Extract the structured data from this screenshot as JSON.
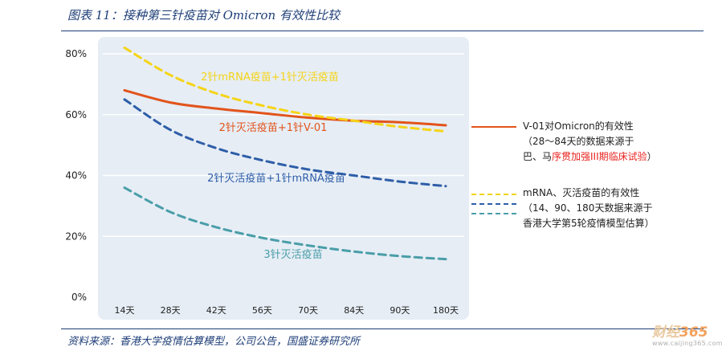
{
  "header": {
    "title": "图表 11：接种第三针疫苗对 Omicron 有效性比较"
  },
  "footer": {
    "source": "资料来源：香港大学疫情估算模型，公司公告，国盛证券研究所",
    "logo_text": "财经",
    "logo_num": "365",
    "logo_url": "www.caijing365.com"
  },
  "legend": {
    "v01_line1": "V-01对Omicron的有效性",
    "v01_line2": "（28～84天的数据来源于",
    "v01_line3_a": "巴、马",
    "v01_line3_b": "序贯加强III期临床试验",
    "v01_line3_c": "）",
    "hk_line1": "mRNA、灭活疫苗的有效性",
    "hk_line2": "（14、90、180天数据来源于",
    "hk_line3": "香港大学第5轮疫情模型估算）"
  },
  "colors": {
    "plot_bg": "#e6edf5",
    "grid": "#ffffff",
    "axis_text": "#222222",
    "v01": "#e2541b",
    "mrna_inact": "#f5d417",
    "inact_mrna": "#2e5ea8",
    "inact3": "#4a9ea8",
    "title": "#1f3f78"
  },
  "chart_data": {
    "type": "line",
    "categories": [
      "14天",
      "28天",
      "42天",
      "56天",
      "70天",
      "84天",
      "90天",
      "180天"
    ],
    "y_tick_labels": [
      "0%",
      "20%",
      "40%",
      "60%",
      "80%"
    ],
    "ylim": [
      0,
      80
    ],
    "grid": true,
    "series": [
      {
        "name": "2针灭活疫苗+1针V-01",
        "style": "solid",
        "color": "#e2541b",
        "values": [
          68,
          64,
          62,
          60.5,
          59,
          58,
          57.5,
          56.5
        ]
      },
      {
        "name": "2针mRNA疫苗+1针灭活疫苗",
        "style": "dashed",
        "color": "#f5d417",
        "values": [
          82,
          73,
          67,
          63,
          60,
          58,
          56,
          54.5
        ]
      },
      {
        "name": "2针灭活疫苗+1针mRNA疫苗",
        "style": "dashed",
        "color": "#2e5ea8",
        "values": [
          65,
          55,
          49,
          45,
          42,
          40,
          38,
          36.5
        ]
      },
      {
        "name": "3针灭活疫苗",
        "style": "dashed",
        "color": "#4a9ea8",
        "values": [
          36,
          28,
          23,
          19.5,
          17,
          15,
          13.5,
          12.5
        ]
      }
    ]
  }
}
